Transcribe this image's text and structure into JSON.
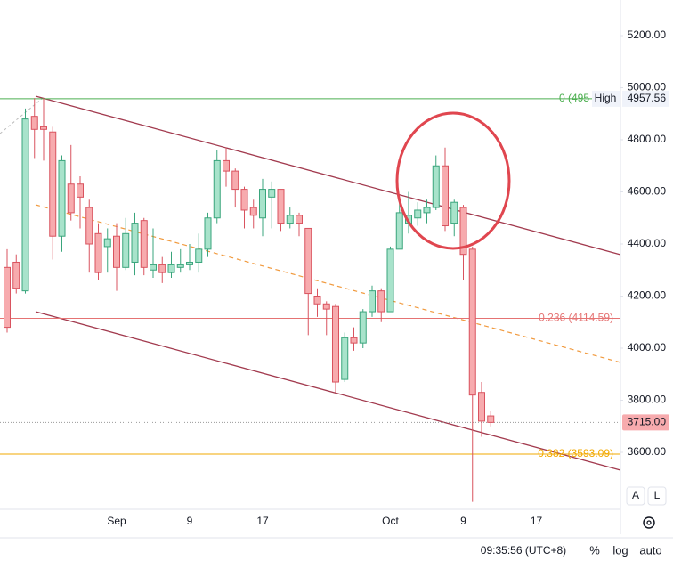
{
  "chart_data": {
    "type": "candlestick",
    "categories": [
      null,
      null,
      null,
      null,
      null,
      null,
      null,
      null,
      null,
      null,
      null,
      null,
      "Sep",
      null,
      null,
      null,
      null,
      null,
      null,
      null,
      "9",
      null,
      null,
      null,
      null,
      null,
      null,
      null,
      "17",
      null,
      null,
      null,
      null,
      null,
      null,
      null,
      null,
      null,
      null,
      null,
      null,
      null,
      "Oct",
      null,
      null,
      null,
      null,
      null,
      null,
      null,
      "9",
      null,
      null,
      null,
      null,
      null,
      null,
      null,
      "17"
    ],
    "open": [
      4310,
      4330,
      4220,
      4890,
      4850,
      4830,
      4430,
      4630,
      4630,
      4540,
      4440,
      4390,
      4430,
      4310,
      4330,
      4490,
      4300,
      4320,
      4290,
      4310,
      4320,
      4330,
      4380,
      4500,
      4720,
      4680,
      4610,
      4540,
      4500,
      4580,
      4610,
      4480,
      4510,
      4460,
      4200,
      4170,
      4160,
      3880,
      4040,
      4020,
      4140,
      4220,
      4140,
      4380,
      4480,
      4500,
      4520,
      4540,
      4700,
      4480,
      4540,
      4380,
      3830,
      3740,
      null,
      null,
      null,
      null,
      null
    ],
    "high": [
      4380,
      4360,
      4920,
      4960,
      4960,
      4850,
      4740,
      4780,
      4660,
      4570,
      4480,
      4460,
      4480,
      4500,
      4520,
      4500,
      4460,
      4350,
      4370,
      4380,
      4400,
      4440,
      4520,
      4760,
      4770,
      4690,
      4620,
      4570,
      4650,
      4640,
      4610,
      4540,
      4520,
      4460,
      4230,
      4180,
      4170,
      4060,
      4080,
      4150,
      4240,
      4230,
      4390,
      4570,
      4600,
      4560,
      4570,
      4740,
      4770,
      4570,
      4550,
      4390,
      3870,
      3760,
      null,
      null,
      null,
      null,
      null
    ],
    "low": [
      4060,
      4210,
      4210,
      4730,
      4720,
      4340,
      4370,
      4490,
      4460,
      4290,
      4260,
      4290,
      4220,
      4300,
      4280,
      4280,
      4270,
      4250,
      4270,
      4290,
      4300,
      4290,
      4350,
      4480,
      4620,
      4540,
      4460,
      4460,
      4430,
      4460,
      4450,
      4460,
      4430,
      4050,
      4120,
      4050,
      3830,
      3870,
      3990,
      4000,
      4120,
      4100,
      4140,
      4380,
      4440,
      4470,
      4480,
      4530,
      4450,
      4430,
      4260,
      3410,
      3660,
      3700,
      null,
      null,
      null,
      null,
      null
    ],
    "close": [
      4080,
      4230,
      4880,
      4840,
      4840,
      4430,
      4720,
      4520,
      4580,
      4400,
      4290,
      4420,
      4310,
      4440,
      4480,
      4310,
      4320,
      4290,
      4320,
      4320,
      4330,
      4380,
      4500,
      4720,
      4680,
      4610,
      4530,
      4510,
      4610,
      4610,
      4480,
      4510,
      4480,
      4210,
      4170,
      4150,
      3870,
      4040,
      4020,
      4140,
      4220,
      4140,
      4380,
      4520,
      4510,
      4530,
      4540,
      4700,
      4470,
      4560,
      4360,
      3820,
      3720,
      3715,
      null,
      null,
      null,
      null,
      null
    ],
    "up_color": "#a8e3cb",
    "up_border": "#3aa57c",
    "down_color": "#f7abae",
    "down_border": "#d9535f",
    "ylim": [
      3381.2,
      5336.75
    ],
    "yticks": [
      {
        "value": 3600,
        "label": "3600.00"
      },
      {
        "value": 3800,
        "label": "3800.00"
      },
      {
        "value": 4000,
        "label": "4000.00"
      },
      {
        "value": 4200,
        "label": "4200.00"
      },
      {
        "value": 4400,
        "label": "4400.00"
      },
      {
        "value": 4600,
        "label": "4600.00"
      },
      {
        "value": 4800,
        "label": "4800.00"
      },
      {
        "value": 5000,
        "label": "5000.00"
      },
      {
        "value": 5200,
        "label": "5200.00"
      }
    ],
    "grid": false,
    "fib_levels": [
      {
        "label": "0 (495",
        "value": 4957.56,
        "color": "#4caf50"
      },
      {
        "label": "0.236 (4114.59)",
        "value": 4114.59,
        "color": "#e57373"
      },
      {
        "label": "0.382 (3593.09)",
        "value": 3593.09,
        "color": "#f2a900"
      }
    ],
    "high_marker": {
      "name": "High",
      "value": 4957.56
    },
    "last_price": {
      "value": 3715,
      "label": "3715.00",
      "color": "#f7abae"
    },
    "scale_buttons": [
      "A",
      "L"
    ],
    "time": "09:35:56 (UTC+8)",
    "bottom_buttons": [
      "%",
      "log",
      "auto"
    ]
  }
}
